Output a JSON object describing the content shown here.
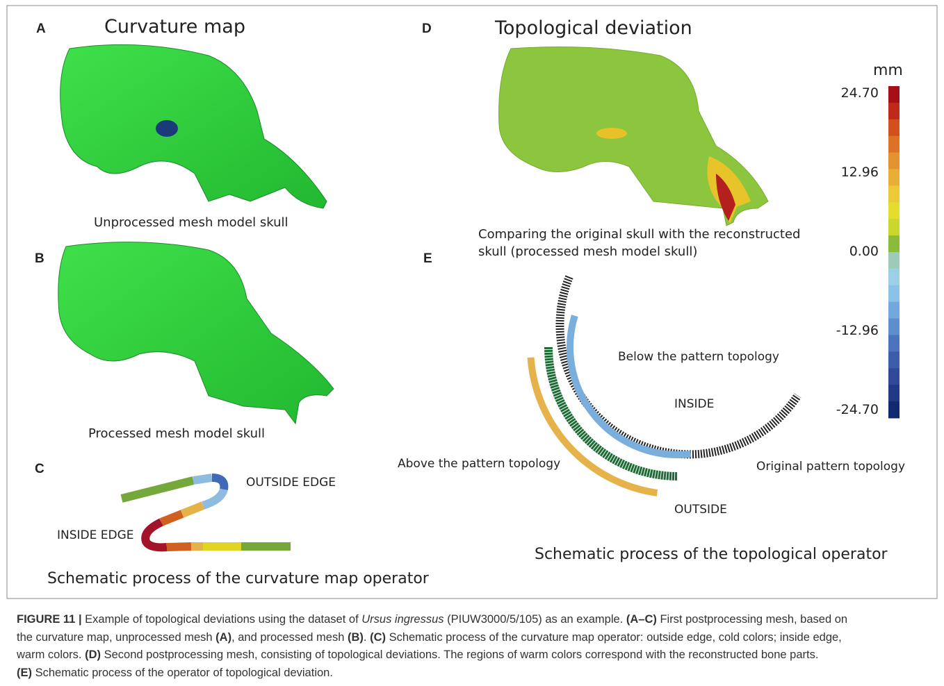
{
  "panels": {
    "a": {
      "letter": "A",
      "title": "Curvature map",
      "caption": "Unprocessed mesh model skull"
    },
    "b": {
      "letter": "B",
      "caption": "Processed mesh model skull"
    },
    "c": {
      "letter": "C",
      "outside": "OUTSIDE EDGE",
      "inside": "INSIDE EDGE",
      "caption": "Schematic process of the curvature map operator"
    },
    "d": {
      "letter": "D",
      "title": "Topological deviation",
      "caption_lines": [
        "Comparing the original skull with the reconstructed",
        "skull (processed mesh model skull)"
      ]
    },
    "e": {
      "letter": "E",
      "below": "Below the pattern topology",
      "inside": "INSIDE",
      "above": "Above the pattern topology",
      "original": "Original pattern topology",
      "outside": "OUTSIDE",
      "caption": "Schematic process of the topological operator"
    }
  },
  "colorbar": {
    "unit": "mm",
    "labels": [
      "24.70",
      "12.96",
      "0.00",
      "-12.96",
      "-24.70"
    ]
  },
  "figure_caption": {
    "lines": [
      [
        {
          "text": "FIGURE 11 | ",
          "bold": true
        },
        {
          "text": "Example of topological deviations using the dataset of "
        },
        {
          "text": "Ursus ingressus",
          "italic": true
        },
        {
          "text": " (PIUW3000/5/105) as an example. "
        },
        {
          "text": "(A–C)",
          "bold": true
        },
        {
          "text": " First postprocessing mesh, based on"
        }
      ],
      [
        {
          "text": "the curvature map, unprocessed mesh "
        },
        {
          "text": "(A)",
          "bold": true
        },
        {
          "text": ", and processed mesh "
        },
        {
          "text": "(B)",
          "bold": true
        },
        {
          "text": ". "
        },
        {
          "text": "(C)",
          "bold": true
        },
        {
          "text": " Schematic process of the curvature map operator: outside edge, cold colors; inside edge,"
        }
      ],
      [
        {
          "text": "warm colors. "
        },
        {
          "text": "(D)",
          "bold": true
        },
        {
          "text": " Second postprocessing mesh, consisting of topological deviations. The regions of warm colors correspond with the reconstructed bone parts."
        }
      ],
      [
        {
          "text": "(E)",
          "bold": true
        },
        {
          "text": " Schematic process of the operator of topological deviation."
        }
      ]
    ]
  }
}
